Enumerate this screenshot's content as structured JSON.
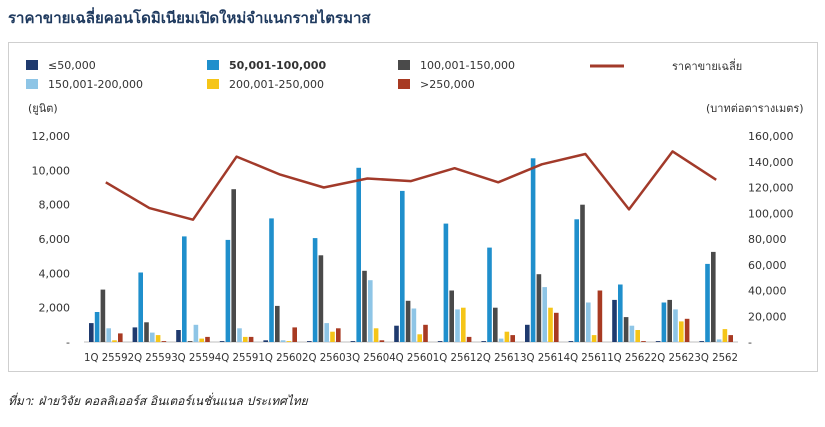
{
  "title": "ราคาขายเฉลี่ยคอนโดมิเนียมเปิดใหม่จำแนกรายไตรมาส",
  "source": "ที่มา: ฝ่ายวิจัย คอลลิเออร์ส อินเตอร์เนชั่นแนล ประเทศไทย",
  "chart_data": {
    "type": "bar",
    "categories": [
      "1Q 2559",
      "2Q 2559",
      "3Q 2559",
      "4Q 2559",
      "1Q 2560",
      "2Q 2560",
      "3Q 2560",
      "4Q 2560",
      "1Q 2561",
      "2Q 2561",
      "3Q 2561",
      "4Q 2561",
      "1Q 2562",
      "2Q 2562",
      "3Q 2562"
    ],
    "axis_tick_text": "1Q 25592Q 25593Q 25594Q 25591Q 25602Q 25603Q 25604Q 25601Q 25612Q 25613Q 25614Q 25611Q 25622Q 25623Q 2562",
    "ylabel_left": "(ยูนิต)",
    "ylabel_right": "(บาทต่อตารางเมตร)",
    "ylim_left": [
      0,
      12000
    ],
    "ylim_right": [
      0,
      160000
    ],
    "yticks_left": [
      "-",
      "2,000",
      "4,000",
      "6,000",
      "8,000",
      "10,000",
      "12,000"
    ],
    "yticks_right": [
      "-",
      "20,000",
      "40,000",
      "60,000",
      "80,000",
      "100,000",
      "120,000",
      "140,000",
      "160,000"
    ],
    "legend_position": "top",
    "series": [
      {
        "name": "≤50,000",
        "color": "#1f3a6e",
        "values": [
          1100,
          850,
          700,
          50,
          100,
          50,
          50,
          950,
          50,
          50,
          1000,
          50,
          2450,
          50,
          50
        ]
      },
      {
        "name": "50,001-100,000",
        "color": "#1f8fcc",
        "values": [
          1750,
          4050,
          6150,
          5950,
          7200,
          6050,
          10150,
          8800,
          6900,
          5500,
          10700,
          7150,
          3350,
          2300,
          4550
        ]
      },
      {
        "name": "100,001-150,000",
        "color": "#4a4a4a",
        "values": [
          3050,
          1150,
          50,
          8900,
          2100,
          5050,
          4150,
          2400,
          3000,
          2000,
          3950,
          8000,
          1450,
          2450,
          5250
        ]
      },
      {
        "name": "150,001-200,000",
        "color": "#8ec5e6",
        "values": [
          800,
          550,
          1000,
          800,
          100,
          1100,
          3600,
          1950,
          1900,
          200,
          3200,
          2300,
          950,
          1900,
          150
        ]
      },
      {
        "name": "200,001-250,000",
        "color": "#f5c518",
        "values": [
          100,
          400,
          200,
          300,
          50,
          600,
          800,
          450,
          2000,
          600,
          2000,
          400,
          700,
          1200,
          750
        ]
      },
      {
        "name": ">250,000",
        "color": "#a83a22",
        "values": [
          500,
          50,
          300,
          300,
          850,
          800,
          100,
          1000,
          300,
          400,
          1700,
          3000,
          50,
          1350,
          400
        ]
      }
    ],
    "line": {
      "name": "ราคาขายเฉลี่ย",
      "color": "#a23a2a",
      "values": [
        124000,
        104000,
        95000,
        144000,
        130000,
        120000,
        127000,
        125000,
        135000,
        124000,
        138000,
        146000,
        103000,
        148000,
        126000
      ]
    }
  }
}
